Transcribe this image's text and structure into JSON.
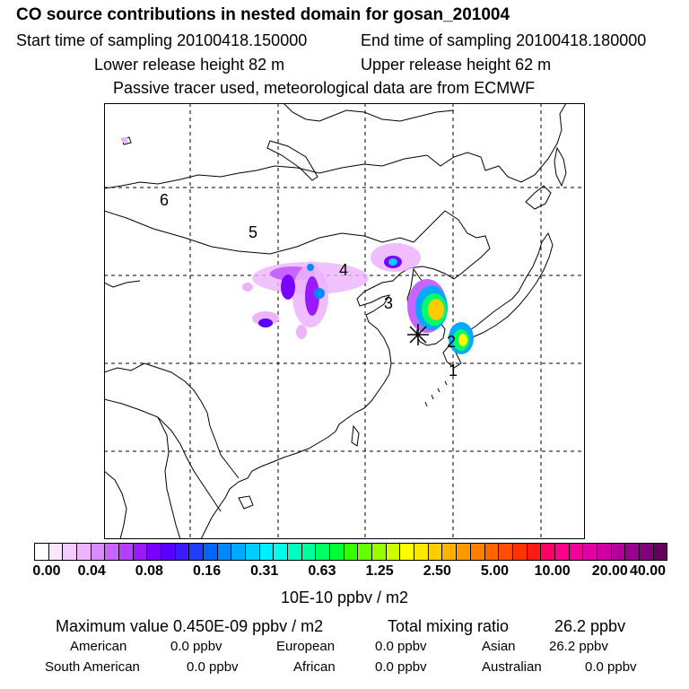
{
  "title": "CO  source contributions in nested domain for gosan_201004",
  "sampling": {
    "start_label": "Start time of sampling 20100418.150000",
    "end_label": "End time of sampling 20100418.180000"
  },
  "release": {
    "lower_label": "Lower release height   82 m",
    "upper_label": "Upper release height   62 m"
  },
  "note": "Passive tracer used, meteorological data are from ECMWF",
  "map": {
    "region_labels": [
      "6",
      "5",
      "4",
      "3",
      "2",
      "1"
    ],
    "receptor_symbol": "gosan-receptor-marker"
  },
  "colorbar": {
    "ticks": [
      "0.00",
      "0.04",
      "0.08",
      "0.16",
      "0.31",
      "0.63",
      "1.25",
      "2.50",
      "5.00",
      "10.00",
      "20.00",
      "40.00"
    ],
    "colors": [
      "#ffffff",
      "#fbe6ff",
      "#f5ccff",
      "#edb3ff",
      "#d98cff",
      "#c766ff",
      "#b340ff",
      "#9a1aff",
      "#7a00ff",
      "#5a00ff",
      "#3d1aff",
      "#1f3dff",
      "#0066ff",
      "#0088ff",
      "#00aaff",
      "#00ccff",
      "#00eeff",
      "#00ffe6",
      "#00ffbf",
      "#00ff99",
      "#00ff66",
      "#00ff33",
      "#33ff00",
      "#66ff00",
      "#99ff00",
      "#ccff00",
      "#ffff00",
      "#ffe600",
      "#ffcc00",
      "#ffb300",
      "#ff9900",
      "#ff8000",
      "#ff6600",
      "#ff4d00",
      "#ff3300",
      "#ff1a1a",
      "#ff0066",
      "#ff0088",
      "#f00099",
      "#e000a3",
      "#cc00a3",
      "#b30099",
      "#99008c",
      "#80007a",
      "#66005c"
    ],
    "unit": "10E-10 ppbv / m2"
  },
  "stats": {
    "maximum_label": "Maximum value  0.450E-09 ppbv / m2",
    "total_label": "Total mixing ratio",
    "total_value": "26.2 ppbv",
    "regions": [
      {
        "name": "American",
        "value": "0.0 ppbv"
      },
      {
        "name": "European",
        "value": "0.0 ppbv"
      },
      {
        "name": "Asian",
        "value": "26.2 ppbv"
      },
      {
        "name": "South American",
        "value": "0.0 ppbv"
      },
      {
        "name": "African",
        "value": "0.0 ppbv"
      },
      {
        "name": "Australian",
        "value": "0.0 ppbv"
      }
    ]
  }
}
